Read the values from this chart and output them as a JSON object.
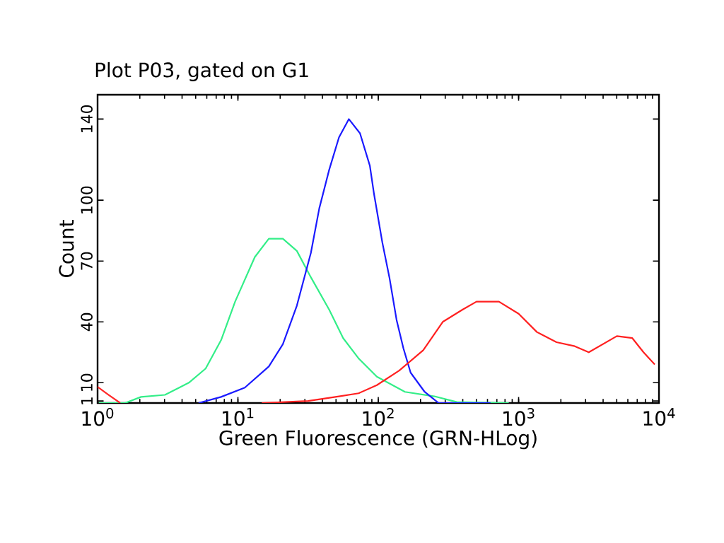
{
  "chart_data": {
    "type": "line",
    "title": "Plot P03, gated on G1",
    "xlabel": "Green Fluorescence (GRN-HLog)",
    "ylabel": "Count",
    "log": "x",
    "xlim": [
      1,
      10000
    ],
    "ylim": [
      0,
      152
    ],
    "xticks": [
      {
        "value": 1,
        "label": "10$^{0}$"
      },
      {
        "value": 10,
        "label": "10$^{1}$"
      },
      {
        "value": 100,
        "label": "10$^{2}$"
      },
      {
        "value": 1000,
        "label": "10$^{3}$"
      },
      {
        "value": 10000,
        "label": "10$^{4}$"
      }
    ],
    "yticks": [
      1,
      10,
      40,
      70,
      100,
      140
    ],
    "series": [
      {
        "color": "#33ee88",
        "x": [
          1.02,
          1.57,
          2.04,
          3.02,
          4.47,
          5.89,
          7.59,
          9.55,
          13.2,
          16.6,
          20.9,
          26.3,
          33.1,
          44.7,
          56.2,
          72.4,
          97.7,
          155,
          251,
          363,
          851
        ],
        "values": [
          0,
          0,
          3,
          4,
          10,
          17,
          31,
          50,
          72,
          81,
          81,
          75,
          62,
          46,
          32,
          22,
          13,
          5.5,
          3.3,
          0.5,
          0
        ]
      },
      {
        "color": "#1a1aff",
        "x": [
          5.25,
          7.59,
          11.2,
          16.6,
          20.9,
          26.3,
          33.1,
          38.0,
          44.7,
          52.5,
          61.7,
          74.1,
          87.1,
          93.3,
          107,
          120,
          135,
          151,
          170,
          214,
          269,
          631
        ],
        "values": [
          0,
          3,
          7.6,
          18,
          29,
          48,
          74,
          96,
          115,
          131,
          140,
          133,
          117,
          103,
          79,
          62,
          41,
          27,
          15,
          5.5,
          0,
          0
        ]
      },
      {
        "color": "#ff2828",
        "x": [
          1,
          1.2,
          1.45
        ],
        "values": [
          8,
          4,
          0
        ]
      },
      {
        "color": "#ff2020",
        "x": [
          14.8,
          31.6,
          52.5,
          72.4,
          97.7,
          141,
          209,
          288,
          398,
          501,
          724,
          1000,
          1349,
          1862,
          2512,
          3162,
          3981,
          5012,
          6457,
          7762,
          9333
        ],
        "values": [
          0,
          1,
          3.3,
          4.8,
          8.8,
          16,
          26,
          40,
          46,
          50,
          50,
          44,
          35,
          30,
          28,
          25,
          29,
          33,
          32,
          25,
          19
        ]
      }
    ]
  }
}
